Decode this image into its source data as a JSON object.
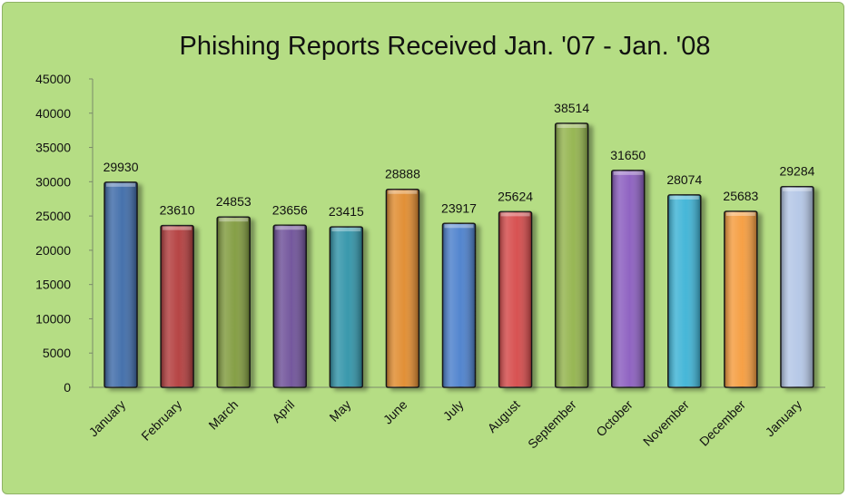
{
  "chart_data": {
    "type": "bar",
    "title": "Phishing Reports Received Jan. '07 - Jan. '08",
    "xlabel": "",
    "ylabel": "",
    "ylim": [
      0,
      45000
    ],
    "yticks": [
      0,
      5000,
      10000,
      15000,
      20000,
      25000,
      30000,
      35000,
      40000,
      45000
    ],
    "categories": [
      "January",
      "February",
      "March",
      "April",
      "May",
      "June",
      "July",
      "August",
      "September",
      "October",
      "November",
      "December",
      "January"
    ],
    "values": [
      29930,
      23610,
      24853,
      23656,
      23415,
      28888,
      23917,
      25624,
      38514,
      31650,
      28074,
      25683,
      29284
    ],
    "colors": [
      "#3d6aa8",
      "#b23b3b",
      "#7f9a3c",
      "#6d4f98",
      "#2f93a8",
      "#e08a2c",
      "#4a7fcc",
      "#d54848",
      "#92b34b",
      "#8a5cbf",
      "#3cb3d6",
      "#f59b3c",
      "#b3c6e6"
    ],
    "grid": false,
    "legend": "none",
    "data_labels": true
  }
}
